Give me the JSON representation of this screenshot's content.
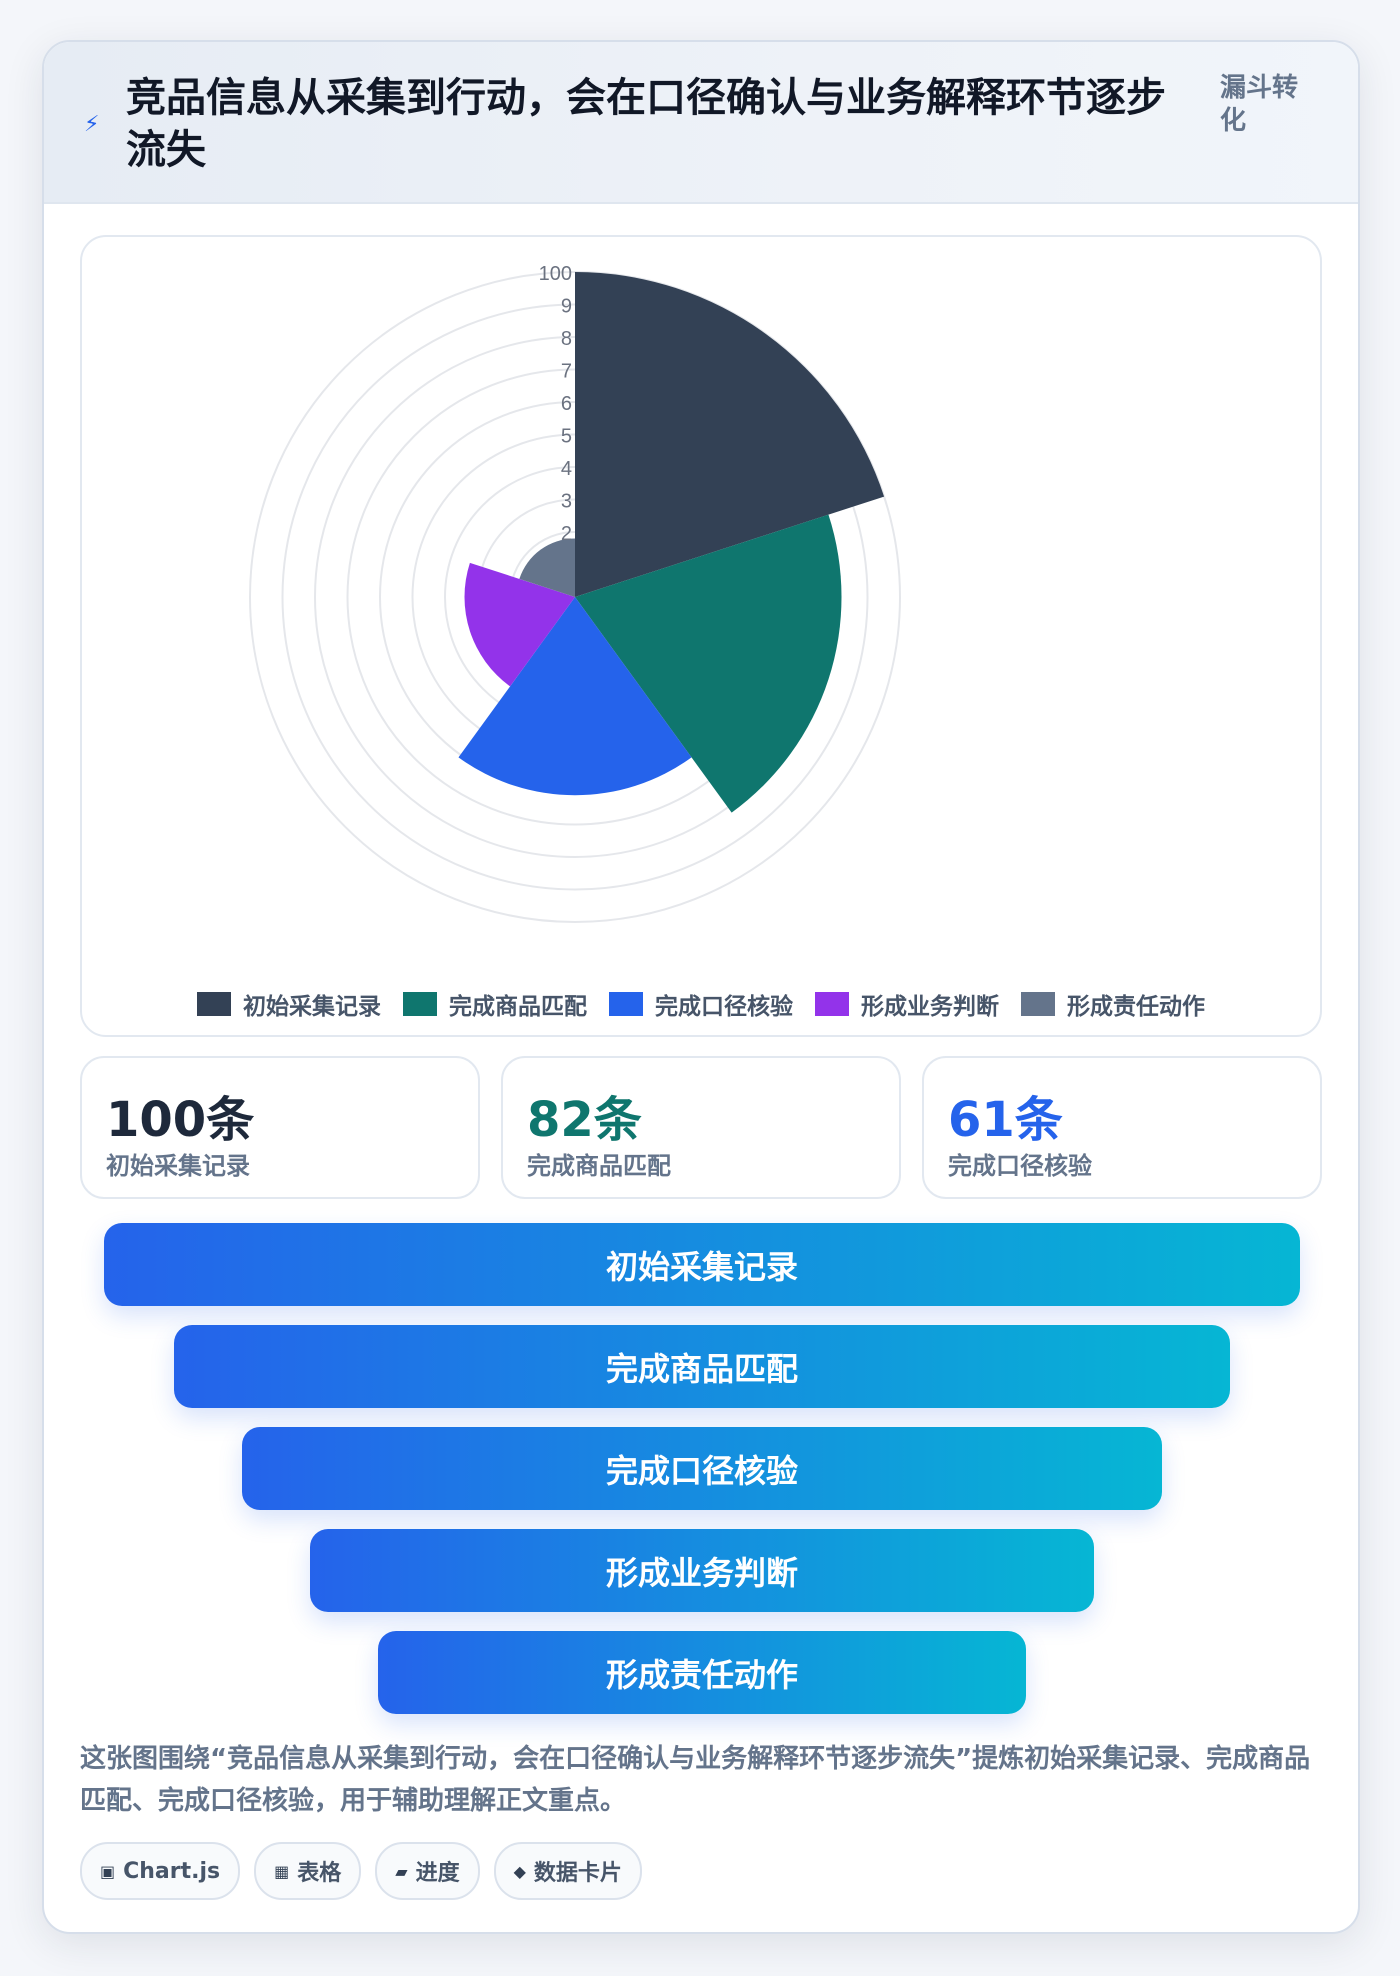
{
  "header": {
    "title": "竞品信息从采集到行动，会在口径确认与业务解释环节逐步流失",
    "tag": "漏斗转化"
  },
  "chart_data": {
    "type": "polarArea",
    "categories": [
      "初始采集记录",
      "完成商品匹配",
      "完成口径核验",
      "形成业务判断",
      "形成责任动作"
    ],
    "values": [
      100,
      82,
      61,
      34,
      18
    ],
    "colors": [
      "#334155",
      "#0f766e",
      "#2563eb",
      "#9333ea",
      "#64748b"
    ],
    "rlim": [
      0,
      100
    ],
    "ticks": [
      "100",
      "9",
      "8",
      "7",
      "6",
      "5",
      "4",
      "3",
      "2"
    ],
    "legend": "bottom"
  },
  "stats": [
    {
      "value": "100条",
      "label": "初始采集记录",
      "color": "#1e293b"
    },
    {
      "value": "82条",
      "label": "完成商品匹配",
      "color": "#0f766e"
    },
    {
      "value": "61条",
      "label": "完成口径核验",
      "color": "#2563eb"
    }
  ],
  "funnel": [
    "初始采集记录",
    "完成商品匹配",
    "完成口径核验",
    "形成业务判断",
    "形成责任动作"
  ],
  "description": "这张图围绕“竞品信息从采集到行动，会在口径确认与业务解释环节逐步流失”提炼初始采集记录、完成商品匹配、完成口径核验，用于辅助理解正文重点。",
  "chips": [
    {
      "icon": "▣",
      "label": "Chart.js",
      "icon_name": "chart-icon"
    },
    {
      "icon": "▦",
      "label": "表格",
      "icon_name": "table-icon"
    },
    {
      "icon": "▰",
      "label": "进度",
      "icon_name": "progress-icon"
    },
    {
      "icon": "◆",
      "label": "数据卡片",
      "icon_name": "data-card-icon"
    }
  ]
}
